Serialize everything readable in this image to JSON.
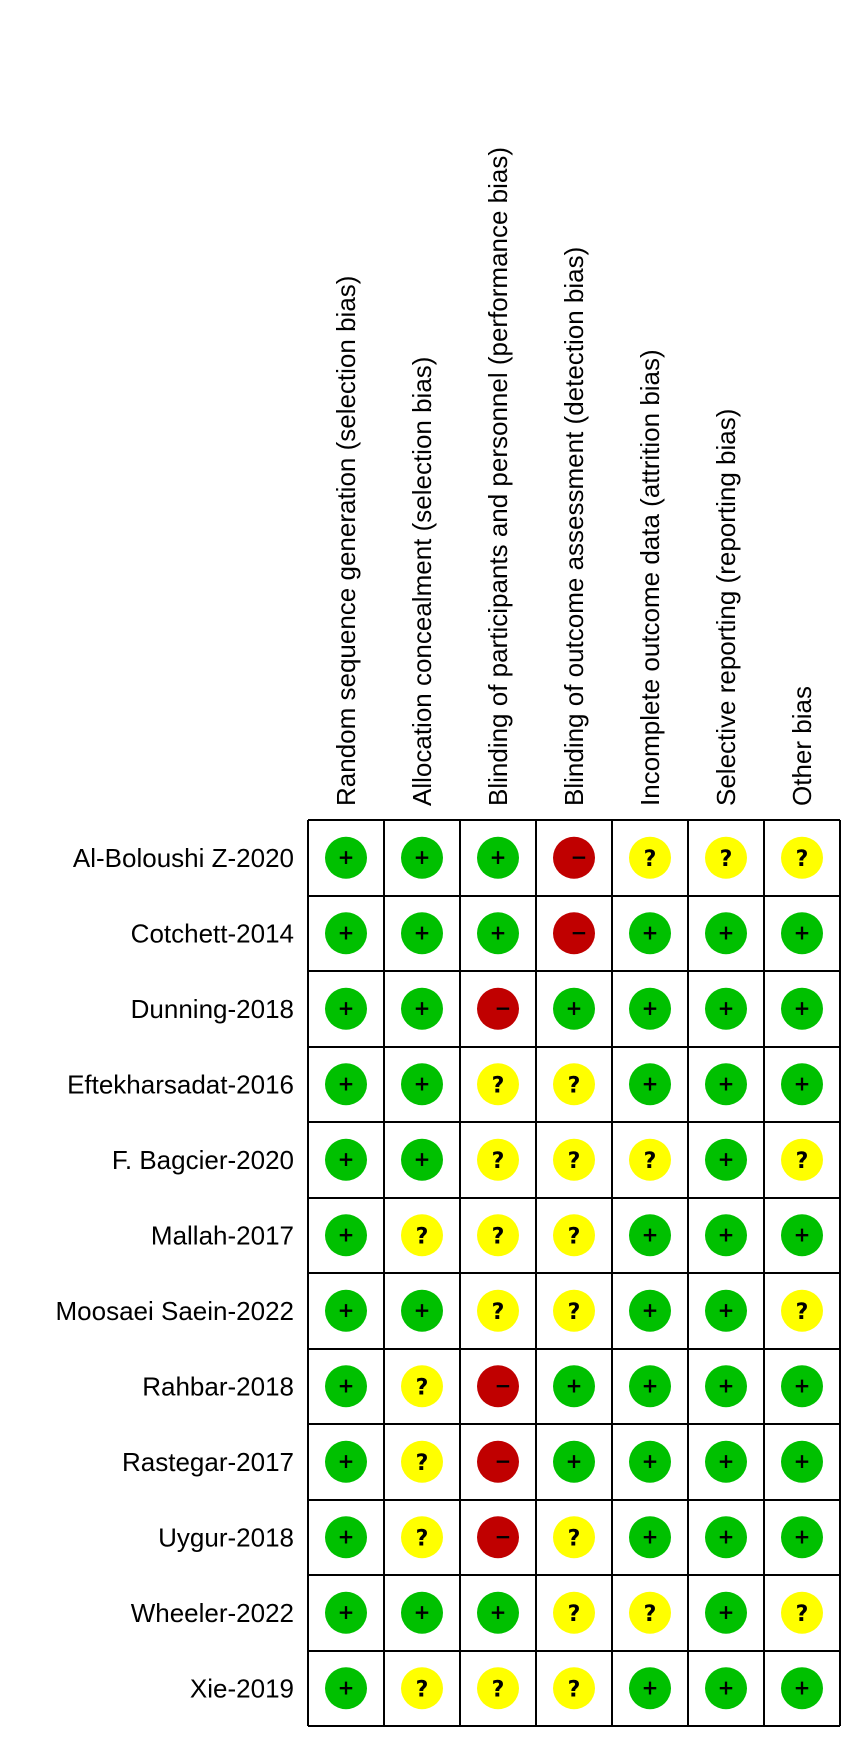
{
  "chart_data": {
    "type": "table",
    "domains": [
      "Random sequence generation (selection bias)",
      "Allocation concealment (selection bias)",
      "Blinding of participants and personnel (performance bias)",
      "Blinding of outcome assessment (detection bias)",
      "Incomplete outcome data (attrition bias)",
      "Selective reporting (reporting bias)",
      "Other bias"
    ],
    "studies": [
      {
        "name": "Al-Boloushi Z-2020",
        "ratings": [
          "low",
          "low",
          "low",
          "high",
          "unclear",
          "unclear",
          "unclear"
        ]
      },
      {
        "name": "Cotchett-2014",
        "ratings": [
          "low",
          "low",
          "low",
          "high",
          "low",
          "low",
          "low"
        ]
      },
      {
        "name": "Dunning-2018",
        "ratings": [
          "low",
          "low",
          "high",
          "low",
          "low",
          "low",
          "low"
        ]
      },
      {
        "name": "Eftekharsadat-2016",
        "ratings": [
          "low",
          "low",
          "unclear",
          "unclear",
          "low",
          "low",
          "low"
        ]
      },
      {
        "name": "F. Bagcier-2020",
        "ratings": [
          "low",
          "low",
          "unclear",
          "unclear",
          "unclear",
          "low",
          "unclear"
        ]
      },
      {
        "name": "Mallah-2017",
        "ratings": [
          "low",
          "unclear",
          "unclear",
          "unclear",
          "low",
          "low",
          "low"
        ]
      },
      {
        "name": "Moosaei Saein-2022",
        "ratings": [
          "low",
          "low",
          "unclear",
          "unclear",
          "low",
          "low",
          "unclear"
        ]
      },
      {
        "name": "Rahbar-2018",
        "ratings": [
          "low",
          "unclear",
          "high",
          "low",
          "low",
          "low",
          "low"
        ]
      },
      {
        "name": "Rastegar-2017",
        "ratings": [
          "low",
          "unclear",
          "high",
          "low",
          "low",
          "low",
          "low"
        ]
      },
      {
        "name": "Uygur-2018",
        "ratings": [
          "low",
          "unclear",
          "high",
          "unclear",
          "low",
          "low",
          "low"
        ]
      },
      {
        "name": "Wheeler-2022",
        "ratings": [
          "low",
          "low",
          "low",
          "unclear",
          "unclear",
          "low",
          "unclear"
        ]
      },
      {
        "name": "Xie-2019",
        "ratings": [
          "low",
          "unclear",
          "unclear",
          "unclear",
          "low",
          "low",
          "low"
        ]
      }
    ],
    "rating_styles": {
      "low": {
        "symbol": "+",
        "color": "#00c000"
      },
      "high": {
        "symbol": "−",
        "color": "#c00000"
      },
      "unclear": {
        "symbol": "?",
        "color": "#ffff00"
      }
    }
  }
}
